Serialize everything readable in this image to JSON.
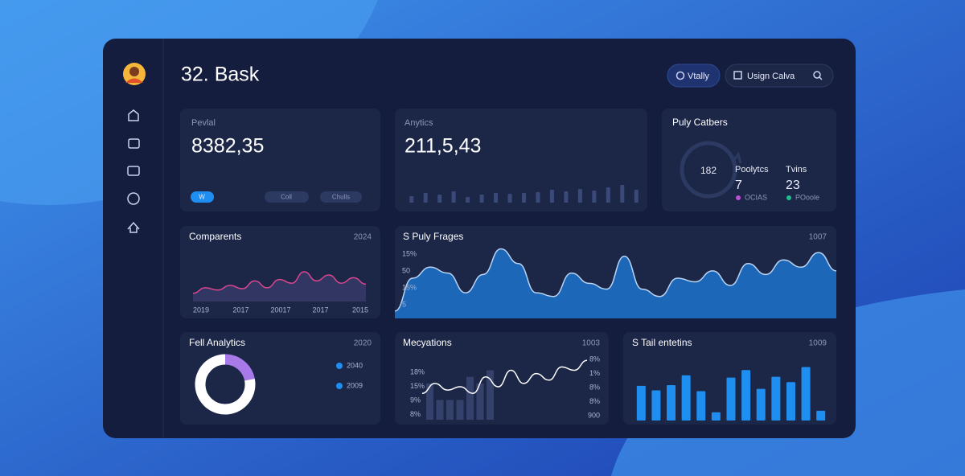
{
  "header": {
    "title": "32. Bask",
    "buttons": [
      "Vtally",
      "Usign Calva"
    ]
  },
  "cards": [
    {
      "label": "Pevlal",
      "value": "8382,35",
      "pills": [
        "W",
        "Coll",
        "Chulls"
      ]
    },
    {
      "label": "Anytics",
      "value": "211,5,43",
      "chart": {
        "type": "bar",
        "values": [
          8,
          12,
          10,
          14,
          7,
          10,
          12,
          11,
          12,
          13,
          16,
          14,
          17,
          15,
          19,
          22,
          16
        ],
        "ylim": [
          0,
          25
        ],
        "color": "#3a4a78"
      }
    },
    {
      "title": "Puly Catbers",
      "ring_value": "182",
      "stats": [
        {
          "name": "Poolytcs",
          "value": "7",
          "legend": "OCIAS",
          "color": "#c04fd8"
        },
        {
          "name": "Tvins",
          "value": "23",
          "legend": "POoole",
          "color": "#20c08a"
        }
      ]
    }
  ],
  "panels": [
    {
      "title": "Comparents",
      "corner": "2024",
      "chart": {
        "type": "line",
        "values": [
          18,
          30,
          25,
          35,
          28,
          45,
          30,
          48,
          40,
          65,
          45,
          58,
          40,
          52,
          38
        ],
        "ylim": [
          0,
          100
        ],
        "color": "#d9468f",
        "x_labels": [
          "2019",
          "2017",
          "20017",
          "2017",
          "2015"
        ]
      }
    },
    {
      "title": "S Puly Frages",
      "corner": "1007",
      "chart": {
        "type": "area",
        "values": [
          10,
          55,
          70,
          62,
          35,
          60,
          95,
          75,
          35,
          30,
          62,
          48,
          40,
          85,
          40,
          30,
          55,
          50,
          65,
          45,
          75,
          60,
          80,
          70,
          90,
          65
        ],
        "ylim": [
          0,
          100
        ],
        "color": "#1d6fc4",
        "y_labels": [
          "15%",
          "50",
          "15%",
          "5"
        ]
      }
    },
    {
      "title": "Fell Analytics",
      "corner": "2020",
      "chart": {
        "type": "donut",
        "values": [
          22,
          78
        ],
        "colors": [
          "#a779e9",
          "#ffffff"
        ],
        "legend": [
          "2040",
          "2009"
        ],
        "legend_color": "#1e8ff0"
      }
    },
    {
      "title": "Mecyations",
      "corner": "1003",
      "chart": {
        "type": "combo",
        "bars": [
          55,
          30,
          30,
          30,
          65,
          55,
          75
        ],
        "line": [
          40,
          55,
          45,
          50,
          40,
          65,
          50,
          75,
          55,
          70,
          60,
          80,
          75,
          90
        ],
        "ylim": [
          0,
          100
        ],
        "bar_color": "#34416a",
        "line_color": "#ffffff",
        "left_labels": [
          "18%",
          "15%",
          "9%",
          "8%"
        ],
        "right_labels": [
          "8%",
          "1%",
          "8%",
          "8%",
          "900"
        ]
      }
    },
    {
      "title": "S Tail entetins",
      "corner": "1009",
      "chart": {
        "type": "bar",
        "values": [
          46,
          40,
          47,
          60,
          39,
          11,
          57,
          67,
          42,
          58,
          51,
          71,
          13
        ],
        "ylim": [
          0,
          80
        ],
        "color": "#1e8ff0"
      }
    }
  ]
}
